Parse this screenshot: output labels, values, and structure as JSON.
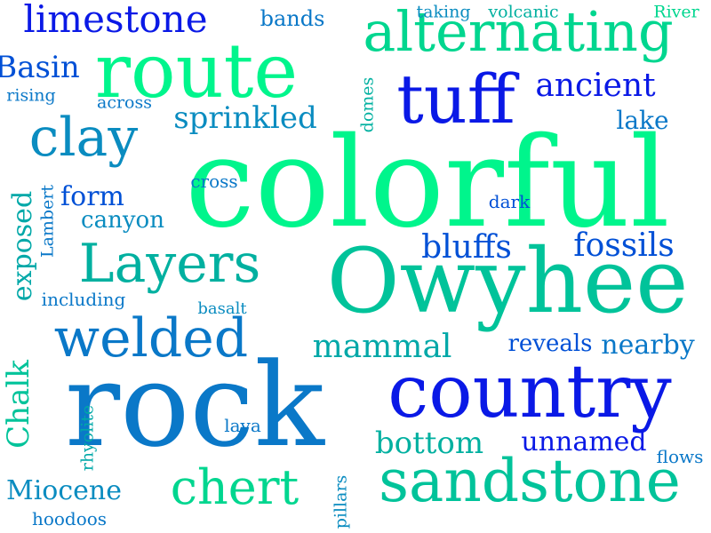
{
  "palette": {
    "green": "#00f58c",
    "teal": "#00c39a",
    "teal_dark": "#0aa0a8",
    "blue_mid": "#0a78c8",
    "blue": "#0050d6",
    "blue_deep": "#0a19e6"
  },
  "words": [
    {
      "text": "colorful",
      "color": "#00f58c",
      "font": "serif",
      "vertical": false
    },
    {
      "text": "Owyhee",
      "color": "#00c39a",
      "font": "serif",
      "vertical": false
    },
    {
      "text": "rock",
      "color": "#0a78c8",
      "font": "serif",
      "vertical": false
    },
    {
      "text": "country",
      "color": "#0a19e6",
      "font": "serif",
      "vertical": false
    },
    {
      "text": "route",
      "color": "#00f58c",
      "font": "serif",
      "vertical": false
    },
    {
      "text": "sandstone",
      "color": "#00c39a",
      "font": "serif",
      "vertical": false
    },
    {
      "text": "alternating",
      "color": "#00d68f",
      "font": "serif",
      "vertical": false
    },
    {
      "text": "Layers",
      "color": "#00b0a0",
      "font": "serif",
      "vertical": false
    },
    {
      "text": "welded",
      "color": "#0a78c8",
      "font": "serif",
      "vertical": false
    },
    {
      "text": "tuff",
      "color": "#0a19e6",
      "font": "serif",
      "vertical": false
    },
    {
      "text": "clay",
      "color": "#0a8cc0",
      "font": "serif",
      "vertical": false
    },
    {
      "text": "chert",
      "color": "#00d68f",
      "font": "serif",
      "vertical": false
    },
    {
      "text": "limestone",
      "color": "#0a19e6",
      "font": "serif",
      "vertical": false
    },
    {
      "text": "sprinkled",
      "color": "#0a8cc0",
      "font": "serif",
      "vertical": false
    },
    {
      "text": "ancient",
      "color": "#0a19e6",
      "font": "serif",
      "vertical": false
    },
    {
      "text": "mammal",
      "color": "#00a8a8",
      "font": "serif",
      "vertical": false
    },
    {
      "text": "bluffs",
      "color": "#0050d6",
      "font": "serif",
      "vertical": false
    },
    {
      "text": "fossils",
      "color": "#0050d6",
      "font": "serif",
      "vertical": false
    },
    {
      "text": "Basin",
      "color": "#0050d6",
      "font": "serif",
      "vertical": false
    },
    {
      "text": "bottom",
      "color": "#00b0a0",
      "font": "serif",
      "vertical": false
    },
    {
      "text": "unnamed",
      "color": "#0a19e6",
      "font": "serif",
      "vertical": false
    },
    {
      "text": "nearby",
      "color": "#0a78c8",
      "font": "serif",
      "vertical": false
    },
    {
      "text": "Miocene",
      "color": "#0a8cc0",
      "font": "serif",
      "vertical": false
    },
    {
      "text": "Chalk",
      "color": "#00c39a",
      "font": "serif",
      "vertical": true
    },
    {
      "text": "exposed",
      "color": "#00a8a8",
      "font": "serif",
      "vertical": true
    },
    {
      "text": "form",
      "color": "#0050d6",
      "font": "serif",
      "vertical": false
    },
    {
      "text": "lake",
      "color": "#0a78c8",
      "font": "serif",
      "vertical": false
    },
    {
      "text": "reveals",
      "color": "#0050d6",
      "font": "serif",
      "vertical": false
    },
    {
      "text": "canyon",
      "color": "#0a8cc0",
      "font": "serif",
      "vertical": false
    },
    {
      "text": "bands",
      "color": "#0a78c8",
      "font": "serif",
      "vertical": false
    },
    {
      "text": "including",
      "color": "#0a78c8",
      "font": "serif",
      "vertical": false
    },
    {
      "text": "hoodoos",
      "color": "#0a78c8",
      "font": "serif",
      "vertical": false
    },
    {
      "text": "flows",
      "color": "#0a78c8",
      "font": "serif",
      "vertical": false
    },
    {
      "text": "lava",
      "color": "#0a78c8",
      "font": "serif",
      "vertical": false
    },
    {
      "text": "basalt",
      "color": "#0a8cc0",
      "font": "serif",
      "vertical": false
    },
    {
      "text": "cross",
      "color": "#0a78c8",
      "font": "serif",
      "vertical": false
    },
    {
      "text": "across",
      "color": "#0a78c8",
      "font": "serif",
      "vertical": false
    },
    {
      "text": "dark",
      "color": "#0050d6",
      "font": "serif",
      "vertical": false
    },
    {
      "text": "rising",
      "color": "#0a78c8",
      "font": "serif",
      "vertical": false
    },
    {
      "text": "taking",
      "color": "#0a8cc0",
      "font": "serif",
      "vertical": false
    },
    {
      "text": "volcanic",
      "color": "#00b0a0",
      "font": "serif",
      "vertical": false
    },
    {
      "text": "River",
      "color": "#00d68f",
      "font": "serif",
      "vertical": false
    },
    {
      "text": "domes",
      "color": "#00b0a0",
      "font": "serif",
      "vertical": true
    },
    {
      "text": "Lambert",
      "color": "#0a78c8",
      "font": "serif",
      "vertical": true
    },
    {
      "text": "rhyolite",
      "color": "#00a8a8",
      "font": "serif",
      "vertical": true
    },
    {
      "text": "pillars",
      "color": "#0a8cc0",
      "font": "serif",
      "vertical": true
    }
  ]
}
